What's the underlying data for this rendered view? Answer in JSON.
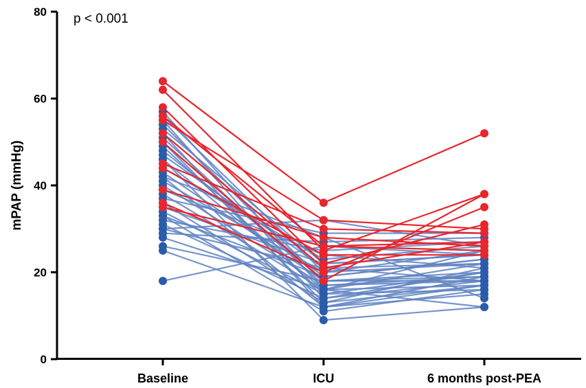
{
  "chart_data": {
    "type": "line",
    "title": "",
    "annotation": "p < 0.001",
    "xlabel": "",
    "ylabel": "mPAP (mmHg)",
    "categories": [
      "Baseline",
      "ICU",
      "6 months post-PEA"
    ],
    "ylim": [
      0,
      80
    ],
    "yticks": [
      0,
      20,
      40,
      60,
      80
    ],
    "grid": false,
    "colors": {
      "red": "#e8262d",
      "blue": "#2a5caa",
      "blue_line": "#5f82c2"
    },
    "series": [
      {
        "group": "red",
        "values": [
          64,
          36,
          52
        ]
      },
      {
        "group": "red",
        "values": [
          62,
          25,
          38
        ]
      },
      {
        "group": "red",
        "values": [
          58,
          22,
          31
        ]
      },
      {
        "group": "red",
        "values": [
          56,
          26,
          25
        ]
      },
      {
        "group": "red",
        "values": [
          55,
          32,
          30
        ]
      },
      {
        "group": "red",
        "values": [
          52,
          21,
          27
        ]
      },
      {
        "group": "red",
        "values": [
          50,
          18,
          38
        ]
      },
      {
        "group": "red",
        "values": [
          45,
          30,
          29
        ]
      },
      {
        "group": "red",
        "values": [
          44,
          24,
          24
        ]
      },
      {
        "group": "red",
        "values": [
          39,
          28,
          26
        ]
      },
      {
        "group": "red",
        "values": [
          36,
          20,
          35
        ]
      },
      {
        "group": "red",
        "values": [
          35,
          26,
          27
        ]
      },
      {
        "group": "blue",
        "values": [
          57,
          16,
          25
        ]
      },
      {
        "group": "blue",
        "values": [
          56,
          20,
          22
        ]
      },
      {
        "group": "blue",
        "values": [
          55,
          14,
          20
        ]
      },
      {
        "group": "blue",
        "values": [
          54,
          18,
          18
        ]
      },
      {
        "group": "blue",
        "values": [
          53,
          22,
          24
        ]
      },
      {
        "group": "blue",
        "values": [
          52,
          12,
          17
        ]
      },
      {
        "group": "blue",
        "values": [
          51,
          17,
          19
        ]
      },
      {
        "group": "blue",
        "values": [
          50,
          13,
          21
        ]
      },
      {
        "group": "blue",
        "values": [
          49,
          15,
          16
        ]
      },
      {
        "group": "blue",
        "values": [
          48,
          19,
          23
        ]
      },
      {
        "group": "blue",
        "values": [
          47,
          21,
          18
        ]
      },
      {
        "group": "blue",
        "values": [
          46,
          16,
          22
        ]
      },
      {
        "group": "blue",
        "values": [
          44,
          23,
          26
        ]
      },
      {
        "group": "blue",
        "values": [
          43,
          18,
          20
        ]
      },
      {
        "group": "blue",
        "values": [
          42,
          12,
          19
        ]
      },
      {
        "group": "blue",
        "values": [
          41,
          20,
          25
        ]
      },
      {
        "group": "blue",
        "values": [
          40,
          17,
          18
        ]
      },
      {
        "group": "blue",
        "values": [
          39,
          24,
          21
        ]
      },
      {
        "group": "blue",
        "values": [
          36,
          13,
          17
        ]
      },
      {
        "group": "blue",
        "values": [
          35,
          22,
          24
        ]
      },
      {
        "group": "blue",
        "values": [
          34,
          15,
          20
        ]
      },
      {
        "group": "blue",
        "values": [
          33,
          19,
          23
        ]
      },
      {
        "group": "blue",
        "values": [
          32,
          25,
          27
        ]
      },
      {
        "group": "blue",
        "values": [
          31,
          14,
          18
        ]
      },
      {
        "group": "blue",
        "values": [
          30,
          21,
          22
        ]
      },
      {
        "group": "blue",
        "values": [
          29,
          27,
          28
        ]
      },
      {
        "group": "blue",
        "values": [
          28,
          16,
          17
        ]
      },
      {
        "group": "blue",
        "values": [
          26,
          18,
          19
        ]
      },
      {
        "group": "blue",
        "values": [
          25,
          12,
          15
        ]
      },
      {
        "group": "blue",
        "values": [
          18,
          26,
          24
        ]
      },
      {
        "group": "blue",
        "values": [
          46,
          9,
          12
        ]
      },
      {
        "group": "blue",
        "values": [
          37,
          29,
          29
        ]
      },
      {
        "group": "blue",
        "values": [
          30,
          32,
          26
        ]
      },
      {
        "group": "blue",
        "values": [
          42,
          28,
          14
        ]
      },
      {
        "group": "blue",
        "values": [
          33,
          11,
          16
        ]
      },
      {
        "group": "blue",
        "values": [
          38,
          16,
          12
        ]
      }
    ]
  }
}
